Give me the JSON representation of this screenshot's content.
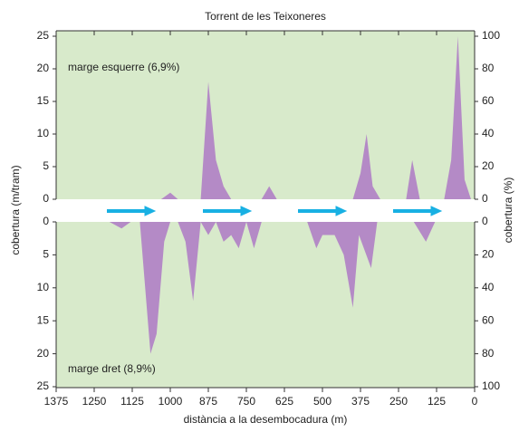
{
  "chart_data": {
    "type": "area",
    "title": "Torrent de les Teixoneres",
    "x_label": "distància a la desembocadura (m)",
    "y_label": "cobertura (m/tram)",
    "y2_label": "cobertura (%)",
    "xlim": [
      1375,
      0
    ],
    "xticks": [
      1375,
      1250,
      1125,
      1000,
      875,
      750,
      625,
      500,
      375,
      250,
      125,
      0
    ],
    "ylim": [
      0,
      25
    ],
    "yticks": [
      0,
      5,
      10,
      15,
      20,
      25
    ],
    "y2lim": [
      0,
      100
    ],
    "y2ticks": [
      0,
      20,
      40,
      60,
      80,
      100
    ],
    "background": "#d8eacb",
    "series": [
      {
        "name": "marge esquerre (6,9%)",
        "color": "#b48ac6",
        "x": [
          1375,
          1030,
          1000,
          975,
          900,
          875,
          850,
          825,
          800,
          700,
          675,
          650,
          400,
          375,
          355,
          335,
          310,
          225,
          205,
          180,
          100,
          77,
          55,
          33,
          12,
          0
        ],
        "values": [
          0,
          0,
          1,
          0,
          0,
          18,
          6,
          2,
          0,
          0,
          2,
          0,
          0,
          4,
          10,
          2,
          0,
          0,
          6,
          0,
          0,
          6,
          25,
          3,
          0,
          0
        ]
      },
      {
        "name": "marge dret (8,9%)",
        "color": "#b48ac6",
        "x": [
          1375,
          1200,
          1160,
          1130,
          1100,
          1065,
          1045,
          1020,
          1000,
          975,
          950,
          925,
          900,
          875,
          850,
          825,
          800,
          775,
          750,
          725,
          700,
          550,
          520,
          500,
          460,
          430,
          400,
          380,
          340,
          320,
          200,
          160,
          130,
          0
        ],
        "values": [
          0,
          0,
          1,
          0,
          0,
          20,
          17,
          3,
          0,
          0,
          3,
          12,
          0,
          2,
          0,
          3,
          2,
          4,
          0,
          4,
          0,
          0,
          4,
          2,
          2,
          5,
          13,
          2,
          7,
          0,
          0,
          3,
          0,
          0
        ]
      }
    ]
  }
}
